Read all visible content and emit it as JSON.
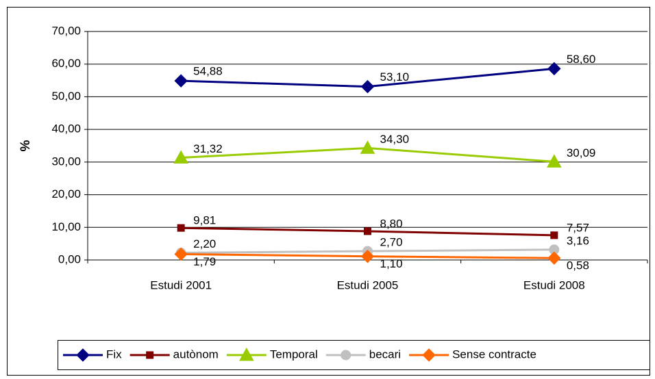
{
  "chart_data": {
    "type": "line",
    "y_label": "%",
    "categories": [
      "Estudi 2001",
      "Estudi 2005",
      "Estudi 2008"
    ],
    "series": [
      {
        "name": "Fix",
        "color": "#000080",
        "marker": "diamond",
        "values": [
          54.88,
          53.1,
          58.6
        ],
        "value_labels": [
          "54,88",
          "53,10",
          "58,60"
        ]
      },
      {
        "name": "autònom",
        "color": "#800000",
        "marker": "square",
        "values": [
          9.81,
          8.8,
          7.57
        ],
        "value_labels": [
          "9,81",
          "8,80",
          "7,57"
        ]
      },
      {
        "name": "Temporal",
        "color": "#99CC00",
        "marker": "triangle",
        "values": [
          31.32,
          34.3,
          30.09
        ],
        "value_labels": [
          "31,32",
          "34,30",
          "30,09"
        ]
      },
      {
        "name": "becari",
        "color": "#C0C0C0",
        "marker": "circle",
        "values": [
          2.2,
          2.7,
          3.16
        ],
        "value_labels": [
          "2,20",
          "2,70",
          "3,16"
        ]
      },
      {
        "name": "Sense contracte",
        "color": "#FF6600",
        "marker": "diamond",
        "values": [
          1.79,
          1.1,
          0.58
        ],
        "value_labels": [
          "1,79",
          "1,10",
          "0,58"
        ]
      }
    ],
    "ylim": [
      0,
      70
    ],
    "yticks": [
      {
        "value": 0,
        "label": "0,00"
      },
      {
        "value": 10,
        "label": "10,00"
      },
      {
        "value": 20,
        "label": "20,00"
      },
      {
        "value": 30,
        "label": "30,00"
      },
      {
        "value": 40,
        "label": "40,00"
      },
      {
        "value": 50,
        "label": "50,00"
      },
      {
        "value": 60,
        "label": "60,00"
      },
      {
        "value": 70,
        "label": "70,00"
      }
    ],
    "grid": true,
    "legend": "bottom"
  }
}
